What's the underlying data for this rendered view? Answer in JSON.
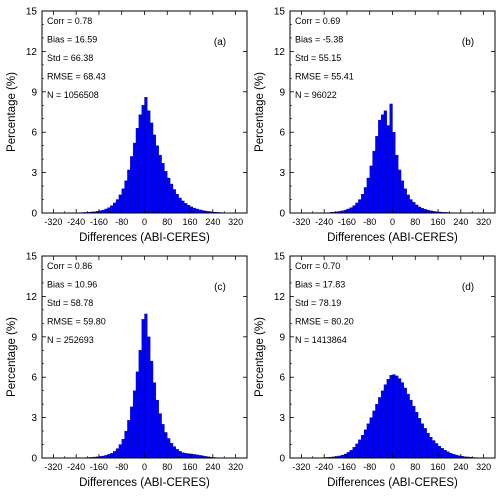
{
  "colors": {
    "bar_fill": "#0000ff",
    "bar_edge": "#00007a",
    "axis": "#000000"
  },
  "chart_data": [
    {
      "type": "bar",
      "panel_label": "(a)",
      "xlabel": "Differences (ABI-CERES)",
      "ylabel": "Percentage (%)",
      "xlim": [
        -360,
        360
      ],
      "ylim": [
        0,
        15
      ],
      "xticks": [
        "-320",
        "-240",
        "-160",
        "-80",
        "0",
        "80",
        "160",
        "240",
        "320"
      ],
      "yticks": [
        "0",
        "3",
        "6",
        "9",
        "12",
        "15"
      ],
      "stats": [
        "Corr = 0.78",
        "Bias = 16.59",
        "Std = 66.38",
        "RMSE = 68.43",
        "N = 1056508"
      ],
      "bin_width": 10,
      "bin_centers": [
        -235,
        -225,
        -215,
        -205,
        -195,
        -185,
        -175,
        -165,
        -155,
        -145,
        -135,
        -125,
        -115,
        -105,
        -95,
        -85,
        -75,
        -65,
        -55,
        -45,
        -35,
        -25,
        -15,
        -5,
        5,
        15,
        25,
        35,
        45,
        55,
        65,
        75,
        85,
        95,
        105,
        115,
        125,
        135,
        145,
        155,
        165,
        175,
        185,
        195,
        205,
        215,
        225,
        235,
        245,
        255,
        265,
        275,
        285,
        295
      ],
      "values": [
        0.02,
        0.03,
        0.04,
        0.05,
        0.06,
        0.08,
        0.1,
        0.13,
        0.17,
        0.22,
        0.3,
        0.4,
        0.55,
        0.75,
        1.0,
        1.35,
        1.8,
        2.4,
        3.2,
        4.2,
        5.2,
        6.3,
        7.3,
        8.0,
        8.6,
        7.6,
        6.7,
        5.8,
        5.0,
        4.3,
        3.7,
        3.1,
        2.6,
        2.15,
        1.75,
        1.4,
        1.12,
        0.9,
        0.72,
        0.58,
        0.46,
        0.37,
        0.3,
        0.24,
        0.19,
        0.15,
        0.12,
        0.09,
        0.07,
        0.05,
        0.04,
        0.03,
        0.02,
        0.01
      ]
    },
    {
      "type": "bar",
      "panel_label": "(b)",
      "xlabel": "Differences (ABI-CERES)",
      "ylabel": "Percentage (%)",
      "xlim": [
        -360,
        360
      ],
      "ylim": [
        0,
        15
      ],
      "xticks": [
        "-320",
        "-240",
        "-160",
        "-80",
        "0",
        "80",
        "160",
        "240",
        "320"
      ],
      "yticks": [
        "0",
        "3",
        "6",
        "9",
        "12",
        "15"
      ],
      "stats": [
        "Corr = 0.69",
        "Bias = -5.38",
        "Std = 55.15",
        "RMSE = 55.41",
        "N = 96022"
      ],
      "bin_width": 10,
      "bin_centers": [
        -235,
        -225,
        -215,
        -205,
        -195,
        -185,
        -175,
        -165,
        -155,
        -145,
        -135,
        -125,
        -115,
        -105,
        -95,
        -85,
        -75,
        -65,
        -55,
        -45,
        -35,
        -25,
        -15,
        -5,
        5,
        15,
        25,
        35,
        45,
        55,
        65,
        75,
        85,
        95,
        105,
        115,
        125,
        135,
        145,
        155,
        165,
        175,
        185,
        195,
        205,
        215,
        225,
        235
      ],
      "values": [
        0.02,
        0.03,
        0.05,
        0.07,
        0.1,
        0.13,
        0.17,
        0.22,
        0.3,
        0.4,
        0.55,
        0.75,
        1.0,
        1.4,
        1.9,
        2.6,
        3.5,
        4.6,
        5.7,
        6.9,
        7.3,
        7.6,
        6.5,
        8.1,
        6.0,
        4.3,
        3.2,
        2.4,
        1.8,
        1.35,
        1.0,
        0.8,
        0.6,
        0.45,
        0.35,
        0.28,
        0.22,
        0.17,
        0.13,
        0.1,
        0.08,
        0.06,
        0.05,
        0.04,
        0.03,
        0.02,
        0.02,
        0.01
      ]
    },
    {
      "type": "bar",
      "panel_label": "(c)",
      "xlabel": "Differences (ABI-CERES)",
      "ylabel": "Percentage (%)",
      "xlim": [
        -360,
        360
      ],
      "ylim": [
        0,
        15
      ],
      "xticks": [
        "-320",
        "-240",
        "-160",
        "-80",
        "0",
        "80",
        "160",
        "240",
        "320"
      ],
      "yticks": [
        "0",
        "3",
        "6",
        "9",
        "12",
        "15"
      ],
      "stats": [
        "Corr = 0.86",
        "Bias = 10.96",
        "Std = 58.78",
        "RMSE = 59.80",
        "N = 252693"
      ],
      "bin_width": 10,
      "bin_centers": [
        -215,
        -205,
        -195,
        -185,
        -175,
        -165,
        -155,
        -145,
        -135,
        -125,
        -115,
        -105,
        -95,
        -85,
        -75,
        -65,
        -55,
        -45,
        -35,
        -25,
        -15,
        -5,
        5,
        15,
        25,
        35,
        45,
        55,
        65,
        75,
        85,
        95,
        105,
        115,
        125,
        135,
        145,
        155,
        165,
        175,
        185,
        195,
        205,
        215,
        225,
        235,
        245,
        255
      ],
      "values": [
        0.02,
        0.03,
        0.04,
        0.05,
        0.07,
        0.09,
        0.12,
        0.15,
        0.2,
        0.27,
        0.35,
        0.5,
        0.7,
        1.0,
        1.4,
        2.0,
        2.8,
        3.8,
        5.0,
        6.4,
        8.0,
        10.3,
        10.7,
        9.0,
        7.2,
        5.6,
        4.3,
        3.3,
        2.5,
        1.9,
        1.45,
        1.1,
        0.85,
        0.65,
        0.5,
        0.4,
        0.35,
        0.32,
        0.3,
        0.27,
        0.24,
        0.2,
        0.16,
        0.12,
        0.09,
        0.06,
        0.04,
        0.02
      ]
    },
    {
      "type": "bar",
      "panel_label": "(d)",
      "xlabel": "Differences (ABI-CERES)",
      "ylabel": "Percentage (%)",
      "xlim": [
        -360,
        360
      ],
      "ylim": [
        0,
        15
      ],
      "xticks": [
        "-320",
        "-240",
        "-160",
        "-80",
        "0",
        "80",
        "160",
        "240",
        "320"
      ],
      "yticks": [
        "0",
        "3",
        "6",
        "9",
        "12",
        "15"
      ],
      "stats": [
        "Corr = 0.70",
        "Bias = 17.83",
        "Std = 78.19",
        "RMSE = 80.20",
        "N = 1413864"
      ],
      "bin_width": 10,
      "bin_centers": [
        -255,
        -245,
        -235,
        -225,
        -215,
        -205,
        -195,
        -185,
        -175,
        -165,
        -155,
        -145,
        -135,
        -125,
        -115,
        -105,
        -95,
        -85,
        -75,
        -65,
        -55,
        -45,
        -35,
        -25,
        -15,
        -5,
        5,
        15,
        25,
        35,
        45,
        55,
        65,
        75,
        85,
        95,
        105,
        115,
        125,
        135,
        145,
        155,
        165,
        175,
        185,
        195,
        205,
        215,
        225,
        235,
        245,
        255,
        265,
        275,
        285,
        295,
        305,
        315
      ],
      "values": [
        0.02,
        0.03,
        0.04,
        0.05,
        0.07,
        0.09,
        0.12,
        0.16,
        0.22,
        0.3,
        0.42,
        0.58,
        0.8,
        1.05,
        1.35,
        1.7,
        2.1,
        2.55,
        3.0,
        3.5,
        4.0,
        4.5,
        5.0,
        5.45,
        5.85,
        6.15,
        6.2,
        6.1,
        5.9,
        5.6,
        5.2,
        4.75,
        4.3,
        3.85,
        3.4,
        2.95,
        2.55,
        2.2,
        1.85,
        1.55,
        1.3,
        1.08,
        0.88,
        0.72,
        0.58,
        0.46,
        0.36,
        0.28,
        0.22,
        0.17,
        0.13,
        0.1,
        0.08,
        0.06,
        0.04,
        0.03,
        0.02,
        0.01
      ]
    }
  ]
}
